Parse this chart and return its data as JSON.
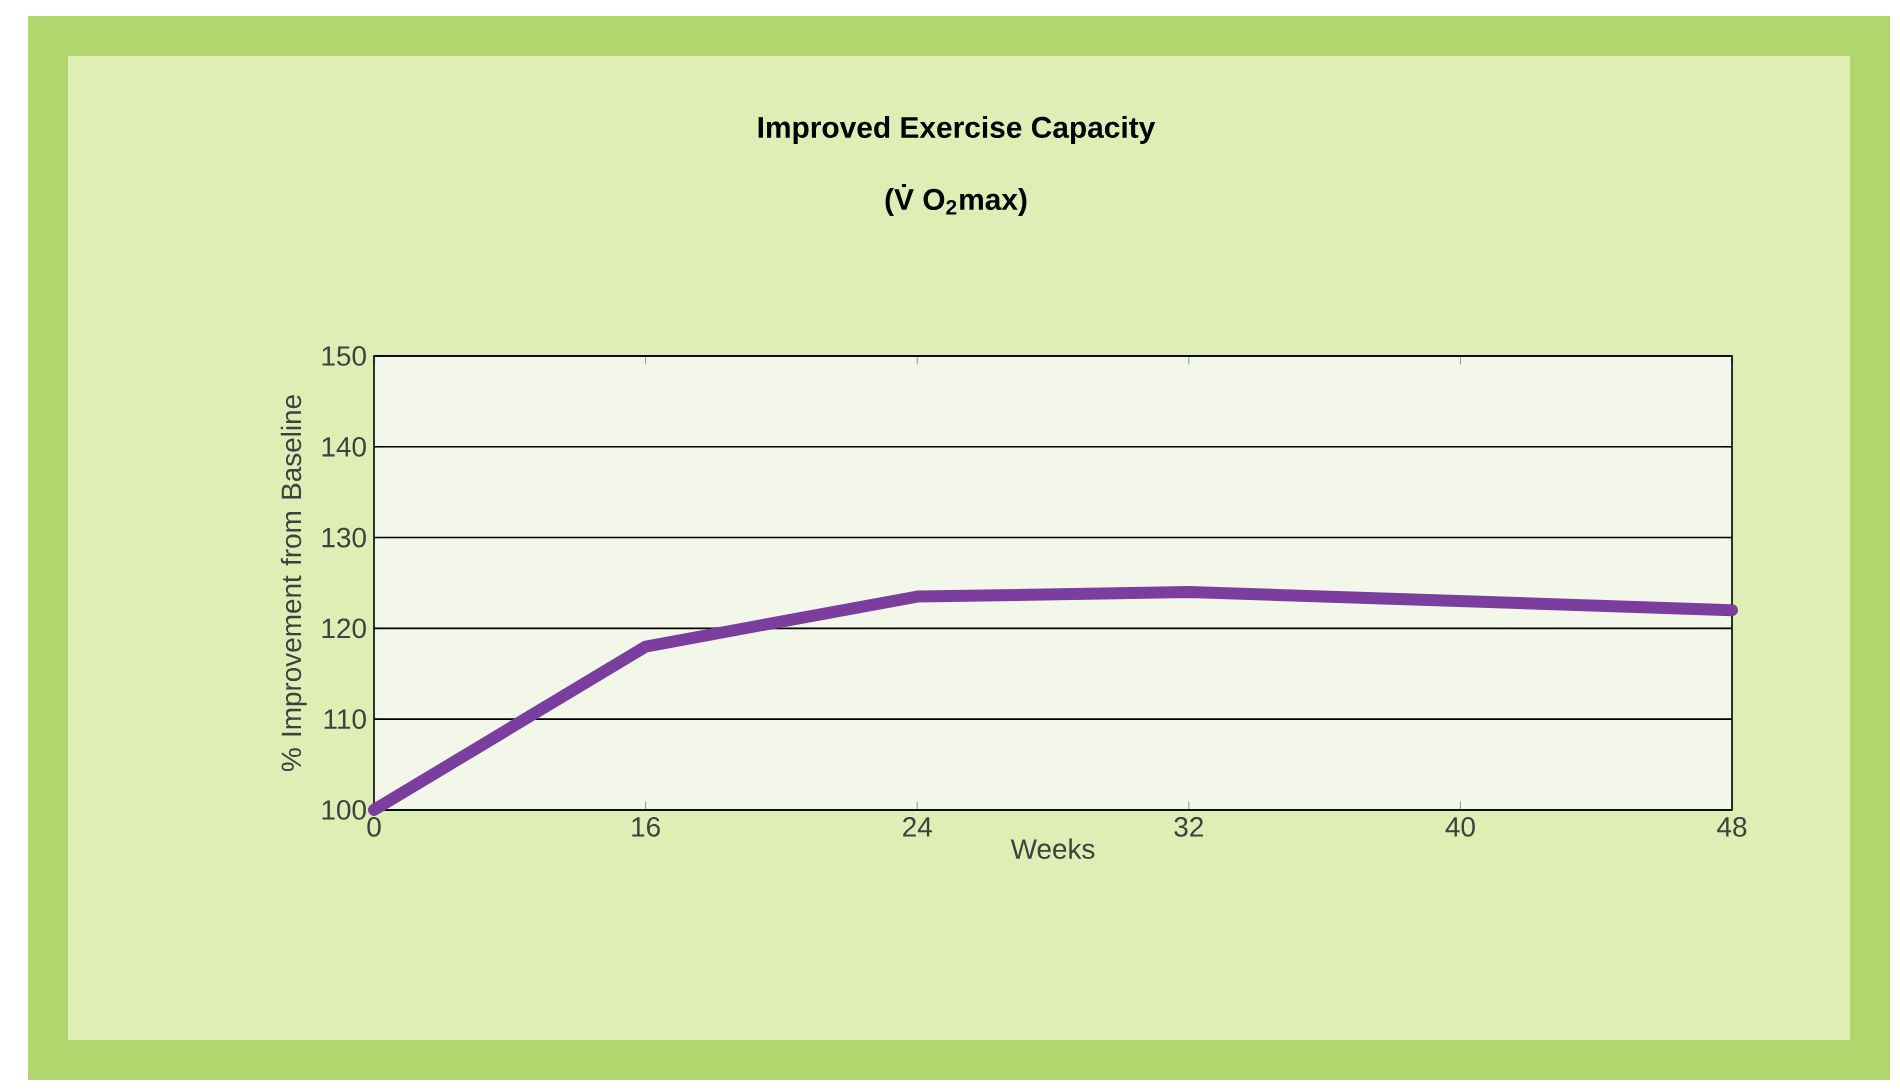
{
  "chart_data": {
    "type": "line",
    "title": "Improved Exercise Capacity",
    "subtitle": "(V̇ O$_{2}$max)",
    "xlabel": "Weeks",
    "ylabel": "% Improvement from Baseline",
    "categories": [
      "0",
      "16",
      "24",
      "32",
      "40",
      "48"
    ],
    "series": [
      {
        "color": "#7b3d9e",
        "values": [
          100,
          118,
          123.5,
          124,
          123,
          122
        ]
      }
    ],
    "ylim": [
      100,
      150
    ],
    "yticks": [
      100,
      110,
      120,
      130,
      140,
      150
    ],
    "grid": "y",
    "line_style": "solid"
  }
}
